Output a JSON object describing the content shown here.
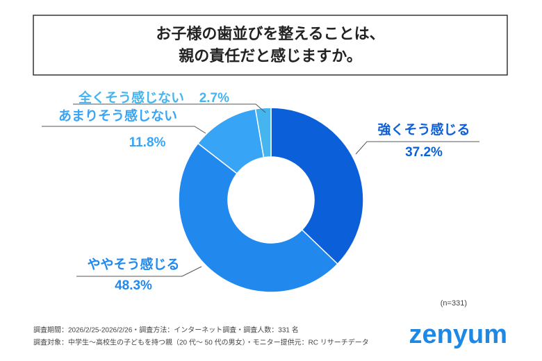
{
  "chart_data": {
    "type": "donut",
    "title": [
      "お子様の歯並びを整えることは、",
      "親の責任だと感じますか。"
    ],
    "categories": [
      "強くそう感じる",
      "ややそう感じる",
      "あまりそう感じない",
      "全くそう感じない"
    ],
    "values": [
      37.2,
      48.3,
      11.8,
      2.7
    ],
    "value_labels": [
      "37.2%",
      "48.3%",
      "11.8%",
      "2.7%"
    ],
    "colors": [
      "#0b5fd9",
      "#2189ee",
      "#38a4f5",
      "#45b5f0"
    ],
    "sample_note": "(n=331)",
    "footnotes": [
      "調査期間：2026/2/25-2026/2/26・調査方法：インターネット調査・調査人数：331 名",
      "調査対象：中学生〜高校生の子どもを持つ親（20 代〜 50 代の男女）・モニター提供元：RC リサーチデータ"
    ],
    "brand": "zenyum"
  }
}
